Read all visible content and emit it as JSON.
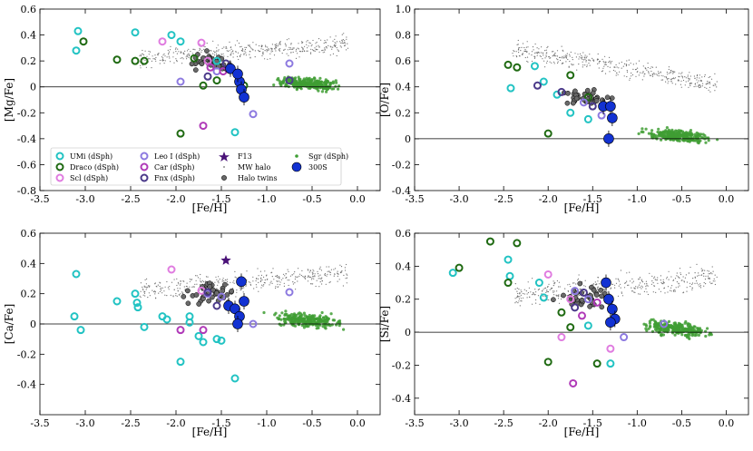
{
  "chart_data": [
    {
      "type": "scatter",
      "id": "mg",
      "title": "",
      "xlabel": "[Fe/H]",
      "ylabel": "[Mg/Fe]",
      "xlim": [
        -3.5,
        0.25
      ],
      "ylim": [
        -0.8,
        0.6
      ],
      "xticks": [
        -3.5,
        -3.0,
        -2.5,
        -2.0,
        -1.5,
        -1.0,
        -0.5,
        0.0
      ],
      "xtick_labels": [
        "-3.5",
        "-3.0",
        "-2.5",
        "-2.0",
        "-1.5",
        "-1.0",
        "-0.5",
        "0.0"
      ],
      "yticks": [
        -0.8,
        -0.6,
        -0.4,
        -0.2,
        0.0,
        0.2,
        0.4,
        0.6
      ],
      "ytick_labels": [
        "-0.8",
        "-0.6",
        "-0.4",
        "-0.2",
        "0",
        "0.2",
        "0.4",
        "0.6"
      ],
      "zero_line": 0,
      "series": [
        {
          "name": "UMi (dSph)",
          "x": [
            -3.08,
            -3.1,
            -2.45,
            -2.05,
            -1.95,
            -1.55,
            -1.35
          ],
          "y": [
            0.43,
            0.28,
            0.42,
            0.4,
            0.35,
            0.2,
            -0.35
          ]
        },
        {
          "name": "Draco (dSph)",
          "x": [
            -3.02,
            -2.65,
            -2.45,
            -2.35,
            -1.95,
            -1.8,
            -1.7,
            -1.55,
            -1.25
          ],
          "y": [
            0.35,
            0.21,
            0.2,
            0.2,
            -0.36,
            0.22,
            0.01,
            0.05,
            0.01
          ]
        },
        {
          "name": "Scl (dSph)",
          "x": [
            -2.15,
            -1.72,
            -1.65
          ],
          "y": [
            0.35,
            0.34,
            0.2
          ]
        },
        {
          "name": "Leo I (dSph)",
          "x": [
            -1.95,
            -1.55,
            -1.15,
            -0.75
          ],
          "y": [
            0.04,
            0.12,
            -0.21,
            0.18
          ]
        },
        {
          "name": "Car (dSph)",
          "x": [
            -1.7,
            -1.48,
            -1.62
          ],
          "y": [
            -0.3,
            0.12,
            0.15
          ]
        },
        {
          "name": "Fnx (dSph)",
          "x": [
            -1.65,
            -1.45,
            -0.75
          ],
          "y": [
            0.08,
            0.18,
            0.05
          ]
        },
        {
          "name": "300S",
          "x": [
            -1.4,
            -1.3,
            -1.28,
            -1.25,
            -1.32
          ],
          "y": [
            0.14,
            0.04,
            -0.02,
            -0.08,
            0.1
          ]
        }
      ],
      "legend": {
        "placement": "lower-left",
        "entries": [
          "UMi (dSph)",
          "Draco (dSph)",
          "Scl (dSph)",
          "Leo I (dSph)",
          "Car (dSph)",
          "Fnx (dSph)",
          "F13",
          "MW halo",
          "Halo twins",
          "Sgr (dSph)",
          "300S"
        ]
      }
    },
    {
      "type": "scatter",
      "id": "o",
      "title": "",
      "xlabel": "[Fe/H]",
      "ylabel": "[O/Fe]",
      "xlim": [
        -3.5,
        0.25
      ],
      "ylim": [
        -0.4,
        1.0
      ],
      "xticks": [
        -3.5,
        -3.0,
        -2.5,
        -2.0,
        -1.5,
        -1.0,
        -0.5,
        0.0
      ],
      "xtick_labels": [
        "-3.5",
        "-3.0",
        "-2.5",
        "-2.0",
        "-1.5",
        "-1.0",
        "-0.5",
        "0.0"
      ],
      "yticks": [
        -0.4,
        -0.2,
        0.0,
        0.2,
        0.4,
        0.6,
        0.8,
        1.0
      ],
      "ytick_labels": [
        "-0.4",
        "-0.2",
        "0",
        "0.2",
        "0.4",
        "0.6",
        "0.8",
        "1.0"
      ],
      "zero_line": 0,
      "series": [
        {
          "name": "UMi (dSph)",
          "x": [
            -2.42,
            -2.15,
            -2.05,
            -1.9,
            -1.75,
            -1.55
          ],
          "y": [
            0.39,
            0.56,
            0.44,
            0.34,
            0.2,
            0.15
          ]
        },
        {
          "name": "Draco (dSph)",
          "x": [
            -2.45,
            -2.35,
            -2.0,
            -1.75,
            -1.55
          ],
          "y": [
            0.57,
            0.55,
            0.04,
            0.49,
            0.32
          ]
        },
        {
          "name": "Leo I (dSph)",
          "x": [
            -1.6,
            -1.4
          ],
          "y": [
            0.28,
            0.18
          ]
        },
        {
          "name": "Fnx (dSph)",
          "x": [
            -2.12,
            -1.85,
            -1.5
          ],
          "y": [
            0.41,
            0.36,
            0.25
          ]
        },
        {
          "name": "300S",
          "x": [
            -1.38,
            -1.28,
            -1.3,
            -1.32
          ],
          "y": [
            0.25,
            0.16,
            0.25,
            0.0
          ]
        }
      ]
    },
    {
      "type": "scatter",
      "id": "ca",
      "title": "",
      "xlabel": "[Fe/H]",
      "ylabel": "[Ca/Fe]",
      "xlim": [
        -3.5,
        0.25
      ],
      "ylim": [
        -0.6,
        0.6
      ],
      "xticks": [
        -3.5,
        -3.0,
        -2.5,
        -2.0,
        -1.5,
        -1.0,
        -0.5,
        0.0
      ],
      "xtick_labels": [
        "-3.5",
        "-3.0",
        "-2.5",
        "-2.0",
        "-1.5",
        "-1.0",
        "-0.5",
        "0.0"
      ],
      "yticks": [
        -0.4,
        -0.2,
        0.0,
        0.2,
        0.4,
        0.6
      ],
      "ytick_labels": [
        "-0.4",
        "-0.2",
        "0",
        "0.2",
        "0.4",
        "0.6"
      ],
      "zero_line": 0,
      "series": [
        {
          "name": "UMi (dSph)",
          "x": [
            -3.1,
            -3.12,
            -3.05,
            -2.65,
            -2.45,
            -2.43,
            -2.42,
            -2.35,
            -2.15,
            -2.1,
            -1.95,
            -1.85,
            -1.85,
            -1.75,
            -1.7,
            -1.55,
            -1.5,
            -1.35
          ],
          "y": [
            0.33,
            0.05,
            -0.04,
            0.15,
            0.2,
            0.14,
            0.11,
            -0.02,
            0.05,
            0.03,
            -0.25,
            0.01,
            0.05,
            -0.08,
            -0.12,
            -0.1,
            -0.11,
            -0.36
          ]
        },
        {
          "name": "Scl (dSph)",
          "x": [
            -2.05,
            -1.72
          ],
          "y": [
            0.36,
            0.22
          ]
        },
        {
          "name": "Leo I (dSph)",
          "x": [
            -1.65,
            -1.5,
            -1.15,
            -0.75
          ],
          "y": [
            0.2,
            0.18,
            0.0,
            0.21
          ]
        },
        {
          "name": "Car (dSph)",
          "x": [
            -1.95,
            -1.7
          ],
          "y": [
            -0.04,
            -0.04
          ]
        },
        {
          "name": "Fnx (dSph)",
          "x": [
            -1.65,
            -1.55
          ],
          "y": [
            0.21,
            0.12
          ]
        },
        {
          "name": "F13",
          "x": [
            -1.45
          ],
          "y": [
            0.42
          ]
        },
        {
          "name": "300S",
          "x": [
            -1.42,
            -1.35,
            -1.28,
            -1.25,
            -1.3,
            -1.32
          ],
          "y": [
            0.12,
            0.1,
            0.28,
            0.15,
            0.05,
            0.0
          ]
        }
      ]
    },
    {
      "type": "scatter",
      "id": "si",
      "title": "",
      "xlabel": "[Fe/H]",
      "ylabel": "[Si/Fe]",
      "xlim": [
        -3.5,
        0.25
      ],
      "ylim": [
        -0.5,
        0.6
      ],
      "xticks": [
        -3.5,
        -3.0,
        -2.5,
        -2.0,
        -1.5,
        -1.0,
        -0.5,
        0.0
      ],
      "xtick_labels": [
        "-3.5",
        "-3.0",
        "-2.5",
        "-2.0",
        "-1.5",
        "-1.0",
        "-0.5",
        "0.0"
      ],
      "yticks": [
        -0.4,
        -0.2,
        0.0,
        0.2,
        0.4,
        0.6
      ],
      "ytick_labels": [
        "-0.4",
        "-0.2",
        "0",
        "0.2",
        "0.4",
        "0.6"
      ],
      "zero_line": 0,
      "series": [
        {
          "name": "UMi (dSph)",
          "x": [
            -3.07,
            -2.45,
            -2.43,
            -2.1,
            -2.05,
            -1.55,
            -1.3
          ],
          "y": [
            0.36,
            0.44,
            0.34,
            0.3,
            0.21,
            0.04,
            -0.19
          ]
        },
        {
          "name": "Draco (dSph)",
          "x": [
            -3.0,
            -2.65,
            -2.45,
            -2.35,
            -2.0,
            -1.75,
            -1.45,
            -1.85
          ],
          "y": [
            0.39,
            0.55,
            0.3,
            0.54,
            -0.18,
            0.03,
            -0.19,
            0.12
          ]
        },
        {
          "name": "Scl (dSph)",
          "x": [
            -2.0,
            -1.75,
            -1.85,
            -1.3
          ],
          "y": [
            0.35,
            0.2,
            -0.03,
            -0.1
          ]
        },
        {
          "name": "Leo I (dSph)",
          "x": [
            -1.7,
            -1.55,
            -1.15,
            -0.7
          ],
          "y": [
            0.25,
            0.2,
            -0.03,
            0.05
          ]
        },
        {
          "name": "Car (dSph)",
          "x": [
            -1.72,
            -1.62,
            -1.45
          ],
          "y": [
            -0.31,
            0.1,
            0.18
          ]
        },
        {
          "name": "Fnx (dSph)",
          "x": [
            -1.7,
            -1.6
          ],
          "y": [
            0.15,
            0.24
          ]
        },
        {
          "name": "300S",
          "x": [
            -1.32,
            -1.28,
            -1.25,
            -1.3,
            -1.35
          ],
          "y": [
            0.2,
            0.14,
            0.08,
            0.06,
            0.3
          ]
        }
      ]
    }
  ],
  "legend_labels": {
    "umi": "UMi (dSph)",
    "draco": "Draco (dSph)",
    "scl": "Scl (dSph)",
    "leo": "Leo I (dSph)",
    "car": "Car (dSph)",
    "fnx": "Fnx (dSph)",
    "f13": "F13",
    "mwhalo": "MW halo",
    "twins": "Halo twins",
    "sgr": "Sgr (dSph)",
    "s300": "300S"
  },
  "colors": {
    "umi": "#22c3c3",
    "draco": "#1f6a12",
    "scl": "#e07ce0",
    "leo": "#8d7ae0",
    "car": "#b03ab8",
    "fnx": "#4b3a8a",
    "f13": "#4a1278",
    "mwhalo": "#6e6e6e",
    "twins": "#6a6a6a",
    "sgr": "#3f9e34",
    "s300": "#1232d2"
  }
}
